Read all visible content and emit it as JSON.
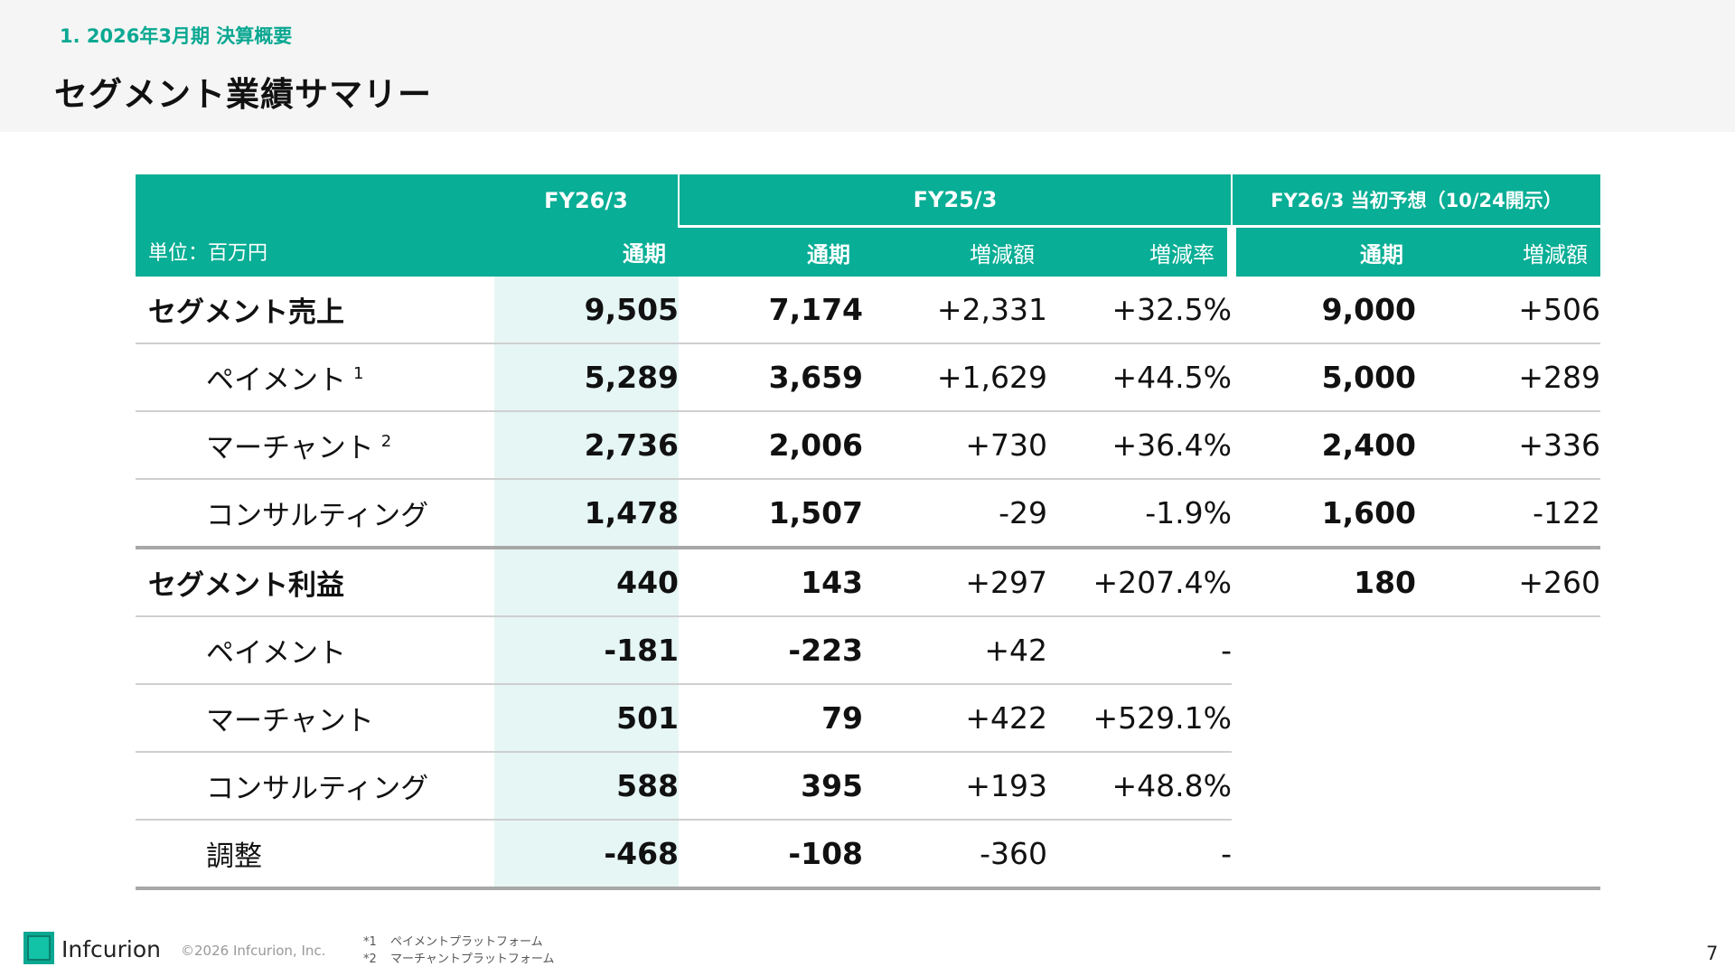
{
  "header": {
    "subtitle": "1. 2026年3月期 決算概要",
    "title": "セグメント業績サマリー"
  },
  "table": {
    "unit_label": "単位：百万円",
    "group_headers": {
      "fy26": "FY26/3",
      "fy25": "FY25/3",
      "forecast": "FY26/3 当初予想（10/24開示）"
    },
    "column_headers": [
      "通期",
      "通期",
      "増減額",
      "増減率",
      "通期",
      "増減額"
    ],
    "rows": [
      {
        "label": "セグメント売上",
        "sup": "",
        "values": [
          "9,505",
          "7,174",
          "+2,331",
          "+32.5%",
          "9,000",
          "+506"
        ]
      },
      {
        "label": "ペイメント",
        "sup": "1",
        "values": [
          "5,289",
          "3,659",
          "+1,629",
          "+44.5%",
          "5,000",
          "+289"
        ]
      },
      {
        "label": "マーチャント",
        "sup": "2",
        "values": [
          "2,736",
          "2,006",
          "+730",
          "+36.4%",
          "2,400",
          "+336"
        ]
      },
      {
        "label": "コンサルティング",
        "sup": "",
        "values": [
          "1,478",
          "1,507",
          "-29",
          "-1.9%",
          "1,600",
          "-122"
        ]
      },
      {
        "label": "セグメント利益",
        "sup": "",
        "values": [
          "440",
          "143",
          "+297",
          "+207.4%",
          "180",
          "+260"
        ]
      },
      {
        "label": "ペイメント",
        "sup": "",
        "values": [
          "-181",
          "-223",
          "+42",
          "-",
          "",
          ""
        ]
      },
      {
        "label": "マーチャント",
        "sup": "",
        "values": [
          "501",
          "79",
          "+422",
          "+529.1%",
          "",
          ""
        ]
      },
      {
        "label": "コンサルティング",
        "sup": "",
        "values": [
          "588",
          "395",
          "+193",
          "+48.8%",
          "",
          ""
        ]
      },
      {
        "label": "調整",
        "sup": "",
        "values": [
          "-468",
          "-108",
          "-360",
          "-",
          "",
          ""
        ]
      }
    ]
  },
  "footer": {
    "brand": "Infcurion",
    "copyright": "©2026 Infcurion, Inc.",
    "notes": [
      {
        "mark": "*1",
        "text": "ペイメントプラットフォーム"
      },
      {
        "mark": "*2",
        "text": "マーチャントプラットフォーム"
      }
    ],
    "page_number": "7"
  },
  "colors": {
    "accent": "#08ae95",
    "highlight": "#e6f6f4",
    "header_bg": "#f4f5f4"
  },
  "icons": {
    "logo": "infcurion-logo-icon"
  }
}
